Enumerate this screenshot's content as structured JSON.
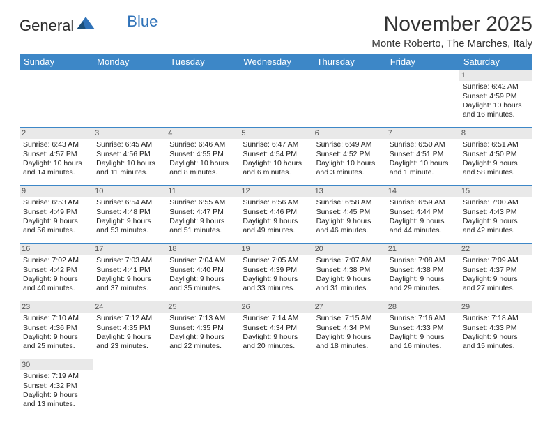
{
  "logo": {
    "word1": "General",
    "word2": "Blue",
    "accent_color": "#2f72b8"
  },
  "header": {
    "title": "November 2025",
    "location": "Monte Roberto, The Marches, Italy"
  },
  "calendar": {
    "header_bg": "#3d87c7",
    "header_fg": "#ffffff",
    "daynum_bg": "#e9e9e9",
    "rule_color": "#3d87c7",
    "weekdays": [
      "Sunday",
      "Monday",
      "Tuesday",
      "Wednesday",
      "Thursday",
      "Friday",
      "Saturday"
    ],
    "weeks": [
      [
        null,
        null,
        null,
        null,
        null,
        null,
        {
          "n": "1",
          "sunrise": "Sunrise: 6:42 AM",
          "sunset": "Sunset: 4:59 PM",
          "daylight": "Daylight: 10 hours and 16 minutes."
        }
      ],
      [
        {
          "n": "2",
          "sunrise": "Sunrise: 6:43 AM",
          "sunset": "Sunset: 4:57 PM",
          "daylight": "Daylight: 10 hours and 14 minutes."
        },
        {
          "n": "3",
          "sunrise": "Sunrise: 6:45 AM",
          "sunset": "Sunset: 4:56 PM",
          "daylight": "Daylight: 10 hours and 11 minutes."
        },
        {
          "n": "4",
          "sunrise": "Sunrise: 6:46 AM",
          "sunset": "Sunset: 4:55 PM",
          "daylight": "Daylight: 10 hours and 8 minutes."
        },
        {
          "n": "5",
          "sunrise": "Sunrise: 6:47 AM",
          "sunset": "Sunset: 4:54 PM",
          "daylight": "Daylight: 10 hours and 6 minutes."
        },
        {
          "n": "6",
          "sunrise": "Sunrise: 6:49 AM",
          "sunset": "Sunset: 4:52 PM",
          "daylight": "Daylight: 10 hours and 3 minutes."
        },
        {
          "n": "7",
          "sunrise": "Sunrise: 6:50 AM",
          "sunset": "Sunset: 4:51 PM",
          "daylight": "Daylight: 10 hours and 1 minute."
        },
        {
          "n": "8",
          "sunrise": "Sunrise: 6:51 AM",
          "sunset": "Sunset: 4:50 PM",
          "daylight": "Daylight: 9 hours and 58 minutes."
        }
      ],
      [
        {
          "n": "9",
          "sunrise": "Sunrise: 6:53 AM",
          "sunset": "Sunset: 4:49 PM",
          "daylight": "Daylight: 9 hours and 56 minutes."
        },
        {
          "n": "10",
          "sunrise": "Sunrise: 6:54 AM",
          "sunset": "Sunset: 4:48 PM",
          "daylight": "Daylight: 9 hours and 53 minutes."
        },
        {
          "n": "11",
          "sunrise": "Sunrise: 6:55 AM",
          "sunset": "Sunset: 4:47 PM",
          "daylight": "Daylight: 9 hours and 51 minutes."
        },
        {
          "n": "12",
          "sunrise": "Sunrise: 6:56 AM",
          "sunset": "Sunset: 4:46 PM",
          "daylight": "Daylight: 9 hours and 49 minutes."
        },
        {
          "n": "13",
          "sunrise": "Sunrise: 6:58 AM",
          "sunset": "Sunset: 4:45 PM",
          "daylight": "Daylight: 9 hours and 46 minutes."
        },
        {
          "n": "14",
          "sunrise": "Sunrise: 6:59 AM",
          "sunset": "Sunset: 4:44 PM",
          "daylight": "Daylight: 9 hours and 44 minutes."
        },
        {
          "n": "15",
          "sunrise": "Sunrise: 7:00 AM",
          "sunset": "Sunset: 4:43 PM",
          "daylight": "Daylight: 9 hours and 42 minutes."
        }
      ],
      [
        {
          "n": "16",
          "sunrise": "Sunrise: 7:02 AM",
          "sunset": "Sunset: 4:42 PM",
          "daylight": "Daylight: 9 hours and 40 minutes."
        },
        {
          "n": "17",
          "sunrise": "Sunrise: 7:03 AM",
          "sunset": "Sunset: 4:41 PM",
          "daylight": "Daylight: 9 hours and 37 minutes."
        },
        {
          "n": "18",
          "sunrise": "Sunrise: 7:04 AM",
          "sunset": "Sunset: 4:40 PM",
          "daylight": "Daylight: 9 hours and 35 minutes."
        },
        {
          "n": "19",
          "sunrise": "Sunrise: 7:05 AM",
          "sunset": "Sunset: 4:39 PM",
          "daylight": "Daylight: 9 hours and 33 minutes."
        },
        {
          "n": "20",
          "sunrise": "Sunrise: 7:07 AM",
          "sunset": "Sunset: 4:38 PM",
          "daylight": "Daylight: 9 hours and 31 minutes."
        },
        {
          "n": "21",
          "sunrise": "Sunrise: 7:08 AM",
          "sunset": "Sunset: 4:38 PM",
          "daylight": "Daylight: 9 hours and 29 minutes."
        },
        {
          "n": "22",
          "sunrise": "Sunrise: 7:09 AM",
          "sunset": "Sunset: 4:37 PM",
          "daylight": "Daylight: 9 hours and 27 minutes."
        }
      ],
      [
        {
          "n": "23",
          "sunrise": "Sunrise: 7:10 AM",
          "sunset": "Sunset: 4:36 PM",
          "daylight": "Daylight: 9 hours and 25 minutes."
        },
        {
          "n": "24",
          "sunrise": "Sunrise: 7:12 AM",
          "sunset": "Sunset: 4:35 PM",
          "daylight": "Daylight: 9 hours and 23 minutes."
        },
        {
          "n": "25",
          "sunrise": "Sunrise: 7:13 AM",
          "sunset": "Sunset: 4:35 PM",
          "daylight": "Daylight: 9 hours and 22 minutes."
        },
        {
          "n": "26",
          "sunrise": "Sunrise: 7:14 AM",
          "sunset": "Sunset: 4:34 PM",
          "daylight": "Daylight: 9 hours and 20 minutes."
        },
        {
          "n": "27",
          "sunrise": "Sunrise: 7:15 AM",
          "sunset": "Sunset: 4:34 PM",
          "daylight": "Daylight: 9 hours and 18 minutes."
        },
        {
          "n": "28",
          "sunrise": "Sunrise: 7:16 AM",
          "sunset": "Sunset: 4:33 PM",
          "daylight": "Daylight: 9 hours and 16 minutes."
        },
        {
          "n": "29",
          "sunrise": "Sunrise: 7:18 AM",
          "sunset": "Sunset: 4:33 PM",
          "daylight": "Daylight: 9 hours and 15 minutes."
        }
      ],
      [
        {
          "n": "30",
          "sunrise": "Sunrise: 7:19 AM",
          "sunset": "Sunset: 4:32 PM",
          "daylight": "Daylight: 9 hours and 13 minutes."
        },
        null,
        null,
        null,
        null,
        null,
        null
      ]
    ]
  }
}
